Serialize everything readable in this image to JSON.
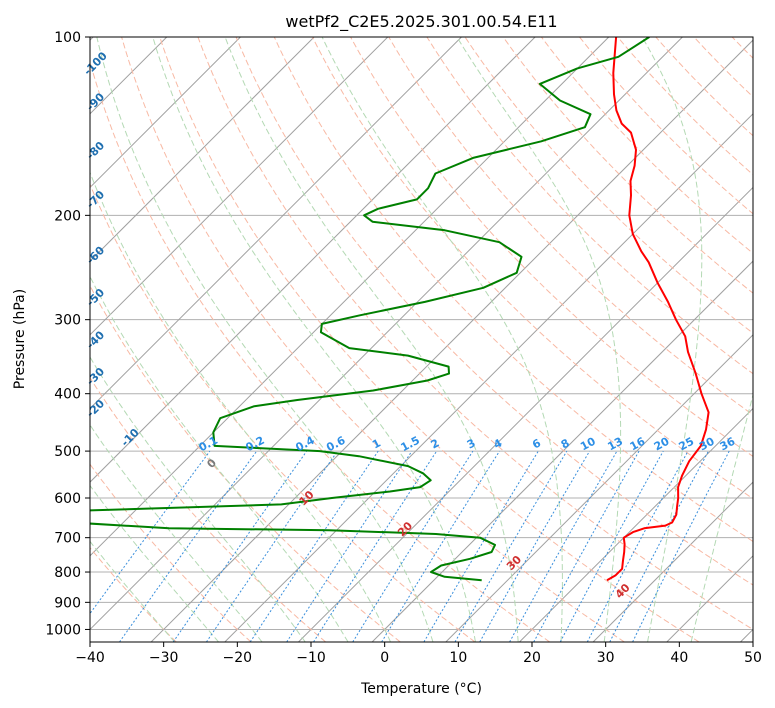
{
  "chart_data": {
    "type": "line",
    "title": "wetPf2_C2E5.2025.301.00.54.E11",
    "xlabel": "Temperature (°C)",
    "ylabel": "Pressure (hPa)",
    "xlim": [
      -40,
      50
    ],
    "ylim": [
      1050,
      100
    ],
    "y_scale": "log",
    "skew": true,
    "grid": true,
    "x_ticks": [
      -40,
      -30,
      -20,
      -10,
      0,
      10,
      20,
      30,
      40,
      50
    ],
    "y_ticks": [
      100,
      200,
      300,
      400,
      500,
      600,
      700,
      800,
      900,
      1000
    ],
    "series": [
      {
        "color": "#ff0000",
        "points": [
          [
            826,
            23.5
          ],
          [
            810,
            24.0
          ],
          [
            790,
            24.0
          ],
          [
            765,
            23.0
          ],
          [
            740,
            22.0
          ],
          [
            718,
            21.0
          ],
          [
            700,
            20.0
          ],
          [
            685,
            20.5
          ],
          [
            675,
            21.5
          ],
          [
            668,
            24.0
          ],
          [
            660,
            24.5
          ],
          [
            640,
            24.0
          ],
          [
            620,
            23.0
          ],
          [
            600,
            22.0
          ],
          [
            575,
            20.5
          ],
          [
            550,
            19.5
          ],
          [
            520,
            18.5
          ],
          [
            490,
            18.0
          ],
          [
            460,
            16.5
          ],
          [
            430,
            14.5
          ],
          [
            400,
            11.0
          ],
          [
            370,
            7.5
          ],
          [
            340,
            3.5
          ],
          [
            320,
            1.0
          ],
          [
            300,
            -2.5
          ],
          [
            280,
            -6.0
          ],
          [
            260,
            -10.0
          ],
          [
            240,
            -14.0
          ],
          [
            230,
            -16.5
          ],
          [
            215,
            -20.0
          ],
          [
            200,
            -23.0
          ],
          [
            185,
            -25.5
          ],
          [
            175,
            -27.5
          ],
          [
            165,
            -29.0
          ],
          [
            155,
            -31.0
          ],
          [
            145,
            -34.0
          ],
          [
            140,
            -36.5
          ],
          [
            133,
            -39.0
          ],
          [
            125,
            -41.5
          ],
          [
            115,
            -44.5
          ],
          [
            100,
            -49.0
          ]
        ]
      },
      {
        "color": "#008000",
        "points": [
          [
            826,
            6.5
          ],
          [
            815,
            1.0
          ],
          [
            800,
            -1.5
          ],
          [
            780,
            -1.0
          ],
          [
            760,
            2.0
          ],
          [
            740,
            4.0
          ],
          [
            720,
            3.5
          ],
          [
            700,
            0.5
          ],
          [
            690,
            -6.0
          ],
          [
            680,
            -21.0
          ],
          [
            675,
            -43.0
          ],
          [
            662,
            -55.0
          ],
          [
            640,
            -78.0
          ],
          [
            630,
            -57.0
          ],
          [
            615,
            -31.0
          ],
          [
            600,
            -25.0
          ],
          [
            585,
            -18.0
          ],
          [
            575,
            -14.5
          ],
          [
            560,
            -14.0
          ],
          [
            545,
            -16.0
          ],
          [
            530,
            -19.0
          ],
          [
            510,
            -27.0
          ],
          [
            500,
            -33.0
          ],
          [
            490,
            -48.0
          ],
          [
            465,
            -50.0
          ],
          [
            440,
            -51.0
          ],
          [
            420,
            -48.0
          ],
          [
            410,
            -43.0
          ],
          [
            395,
            -34.0
          ],
          [
            380,
            -28.0
          ],
          [
            370,
            -26.0
          ],
          [
            360,
            -27.0
          ],
          [
            345,
            -34.0
          ],
          [
            335,
            -43.0
          ],
          [
            315,
            -49.0
          ],
          [
            305,
            -50.0
          ],
          [
            295,
            -46.0
          ],
          [
            280,
            -39.0
          ],
          [
            265,
            -33.0
          ],
          [
            250,
            -30.5
          ],
          [
            235,
            -32.0
          ],
          [
            222,
            -37.0
          ],
          [
            212,
            -46.0
          ],
          [
            205,
            -57.0
          ],
          [
            200,
            -59.0
          ],
          [
            195,
            -58.0
          ],
          [
            188,
            -54.0
          ],
          [
            180,
            -54.0
          ],
          [
            170,
            -55.0
          ],
          [
            160,
            -52.0
          ],
          [
            150,
            -45.0
          ],
          [
            142,
            -41.0
          ],
          [
            135,
            -42.0
          ],
          [
            128,
            -48.0
          ],
          [
            120,
            -53.0
          ],
          [
            113,
            -50.0
          ],
          [
            108,
            -46.0
          ],
          [
            100,
            -44.5
          ]
        ]
      }
    ],
    "dry_adiabat_labels": [
      -100,
      -90,
      -80,
      -70,
      -60,
      -50,
      -40,
      -30,
      -20,
      -10,
      0,
      10,
      20,
      30,
      40
    ],
    "mixing_ratio_labels": [
      "0.1",
      "0.2",
      "0.4",
      "0.6",
      "1",
      "1.5",
      "2",
      "3",
      "4",
      "6",
      "8",
      "10",
      "13",
      "16",
      "20",
      "25",
      "30",
      "36"
    ]
  }
}
